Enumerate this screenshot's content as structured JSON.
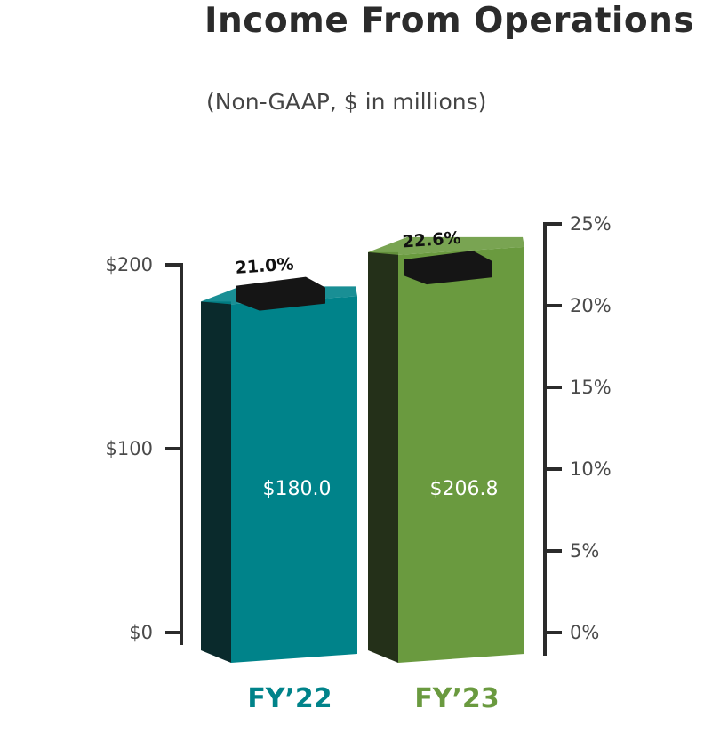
{
  "chart_data": {
    "type": "bar",
    "title": "Income From Operations",
    "subtitle": "(Non-GAAP, $ in millions)",
    "categories": [
      "FY’22",
      "FY’23"
    ],
    "series": [
      {
        "values": [
          180.0,
          206.8
        ],
        "value_labels": [
          "$180.0",
          "$206.8"
        ]
      },
      {
        "values": [
          21.0,
          22.6
        ],
        "value_labels": [
          "21.0%",
          "22.6%"
        ]
      }
    ],
    "colors": {
      "fy22_bar": "#00838a",
      "fy22_side": "#0a2a2c",
      "fy23_bar": "#6a9a3f",
      "fy23_side": "#243019",
      "marker": "#151515",
      "axis": "#2b2b2b"
    },
    "left_axis": {
      "ylim": [
        0,
        200
      ],
      "ticks": [
        0,
        100,
        200
      ],
      "tick_labels": [
        "$0",
        "$100",
        "$200"
      ]
    },
    "right_axis": {
      "ylim": [
        0,
        25
      ],
      "ticks": [
        0,
        5,
        10,
        15,
        20,
        25
      ],
      "tick_labels": [
        "0%",
        "5%",
        "10%",
        "15%",
        "20%",
        "25%"
      ]
    },
    "grid": false,
    "legend": "none"
  }
}
